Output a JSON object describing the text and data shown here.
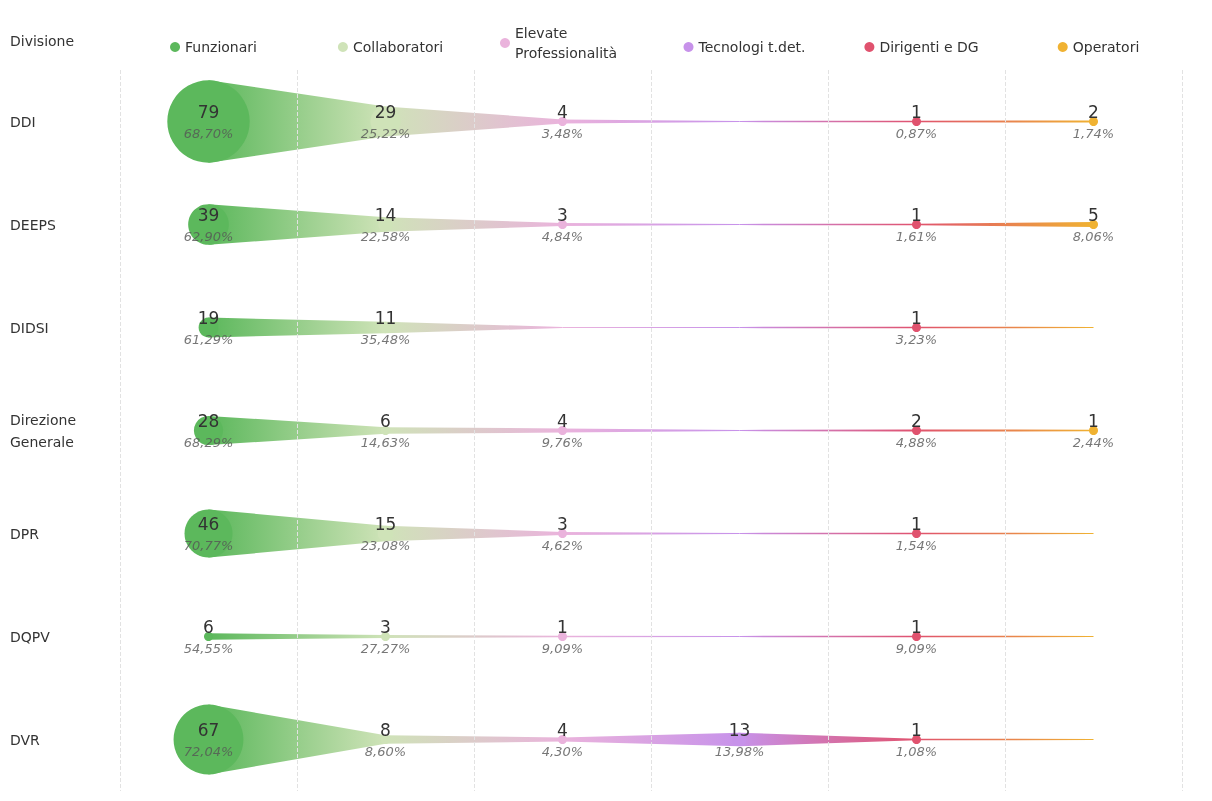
{
  "chart_data": {
    "type": "other",
    "ylabel": "Divisione",
    "data_labels": true,
    "legend": "top",
    "categories": [
      "DDI",
      "DEEPS",
      "DIDSI",
      "Direzione Generale",
      "DPR",
      "DQPV",
      "DVR"
    ],
    "series": [
      {
        "name": "Funzionari",
        "color": "#5cb85c",
        "values": [
          79,
          39,
          19,
          28,
          46,
          6,
          67
        ]
      },
      {
        "name": "Collaboratori",
        "color": "#cfe3b8",
        "values": [
          29,
          14,
          11,
          6,
          15,
          3,
          8
        ]
      },
      {
        "name": "Elevate Professionalità",
        "color": "#eab3dc",
        "values": [
          4,
          3,
          null,
          4,
          3,
          1,
          4
        ]
      },
      {
        "name": "Tecnologi t.det.",
        "color": "#c792ea",
        "values": [
          null,
          null,
          null,
          null,
          null,
          null,
          13
        ]
      },
      {
        "name": "Dirigenti e DG",
        "color": "#e0526e",
        "values": [
          1,
          1,
          1,
          2,
          1,
          1,
          1
        ]
      },
      {
        "name": "Operatori",
        "color": "#f0b232",
        "values": [
          2,
          5,
          null,
          1,
          null,
          null,
          null
        ]
      }
    ],
    "annotations": [
      "68,70%",
      "25,22%",
      "3,48%",
      "0,87%",
      "1,74%",
      "62,90%",
      "22,58%",
      "4,84%",
      "1,61%",
      "8,06%",
      "61,29%",
      "35,48%",
      "3,23%",
      "68,29%",
      "14,63%",
      "9,76%",
      "4,88%",
      "2,44%",
      "70,77%",
      "23,08%",
      "4,62%",
      "1,54%",
      "54,55%",
      "27,27%",
      "9,09%",
      "9,09%",
      "72,04%",
      "8,60%",
      "4,30%",
      "13,98%",
      "1,08%"
    ]
  }
}
